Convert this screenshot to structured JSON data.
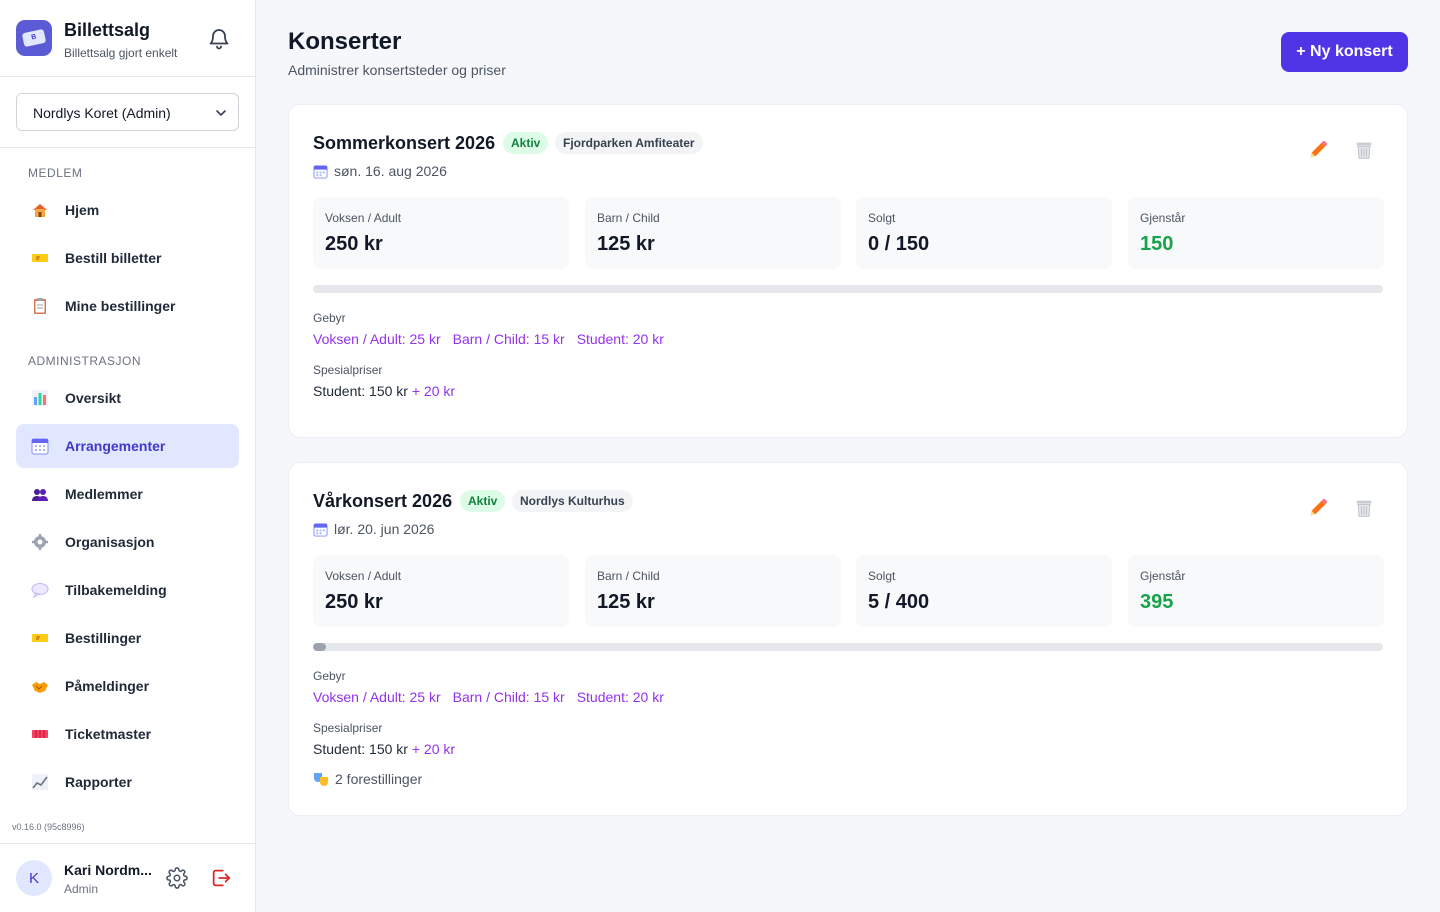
{
  "app": {
    "title": "Billettsalg",
    "subtitle": "Billettsalg gjort enkelt"
  },
  "org_selector": {
    "value": "Nordlys Koret (Admin)"
  },
  "sidebar": {
    "sections": [
      {
        "label": "MEDLEM"
      },
      {
        "label": "ADMINISTRASJON"
      }
    ],
    "items": [
      {
        "label": "Hjem",
        "icon": "house-icon"
      },
      {
        "label": "Bestill billetter",
        "icon": "ticket-icon"
      },
      {
        "label": "Mine bestillinger",
        "icon": "clipboard-icon"
      },
      {
        "label": "Oversikt",
        "icon": "bar-chart-icon"
      },
      {
        "label": "Arrangementer",
        "icon": "calendar-icon",
        "active": true
      },
      {
        "label": "Medlemmer",
        "icon": "people-icon"
      },
      {
        "label": "Organisasjon",
        "icon": "gear-icon"
      },
      {
        "label": "Tilbakemelding",
        "icon": "speech-bubble-icon"
      },
      {
        "label": "Bestillinger",
        "icon": "ticket-icon"
      },
      {
        "label": "Påmeldinger",
        "icon": "handshake-icon"
      },
      {
        "label": "Ticketmaster",
        "icon": "ticket-stub-icon"
      },
      {
        "label": "Rapporter",
        "icon": "line-chart-icon"
      }
    ],
    "version": "v0.16.0 (95c8996)"
  },
  "user": {
    "initial": "K",
    "name": "Kari Nordm...",
    "role": "Admin"
  },
  "page": {
    "title": "Konserter",
    "subtitle": "Administrer konsertsteder og priser",
    "new_button": "+ Ny konsert"
  },
  "concerts": [
    {
      "title": "Sommerkonsert 2026",
      "status": "Aktiv",
      "venue": "Fjordparken Amfiteater",
      "date": "søn. 16. aug 2026",
      "stats": [
        {
          "label": "Voksen / Adult",
          "value": "250 kr"
        },
        {
          "label": "Barn / Child",
          "value": "125 kr"
        },
        {
          "label": "Solgt",
          "value": "0 / 150"
        },
        {
          "label": "Gjenstår",
          "value": "150"
        }
      ],
      "sold_fraction": 0.0,
      "fee_label": "Gebyr",
      "fees": [
        "Voksen / Adult: 25 kr",
        "Barn / Child: 15 kr",
        "Student: 20 kr"
      ],
      "special_label": "Spesialpriser",
      "special_price": "Student: 150 kr",
      "special_fee": "+ 20 kr"
    },
    {
      "title": "Vårkonsert 2026",
      "status": "Aktiv",
      "venue": "Nordlys Kulturhus",
      "date": "lør. 20. jun 2026",
      "stats": [
        {
          "label": "Voksen / Adult",
          "value": "250 kr"
        },
        {
          "label": "Barn / Child",
          "value": "125 kr"
        },
        {
          "label": "Solgt",
          "value": "5 / 400"
        },
        {
          "label": "Gjenstår",
          "value": "395"
        }
      ],
      "sold_fraction": 0.0125,
      "fee_label": "Gebyr",
      "fees": [
        "Voksen / Adult: 25 kr",
        "Barn / Child: 15 kr",
        "Student: 20 kr"
      ],
      "special_label": "Spesialpriser",
      "special_price": "Student: 150 kr",
      "special_fee": "+ 20 kr",
      "performances": "2 forestillinger"
    }
  ],
  "colors": {
    "accent": "#4f35e6",
    "active_nav_bg": "#e0e7ff",
    "fee_purple": "#9333ea",
    "remaining_green": "#16a34a"
  }
}
